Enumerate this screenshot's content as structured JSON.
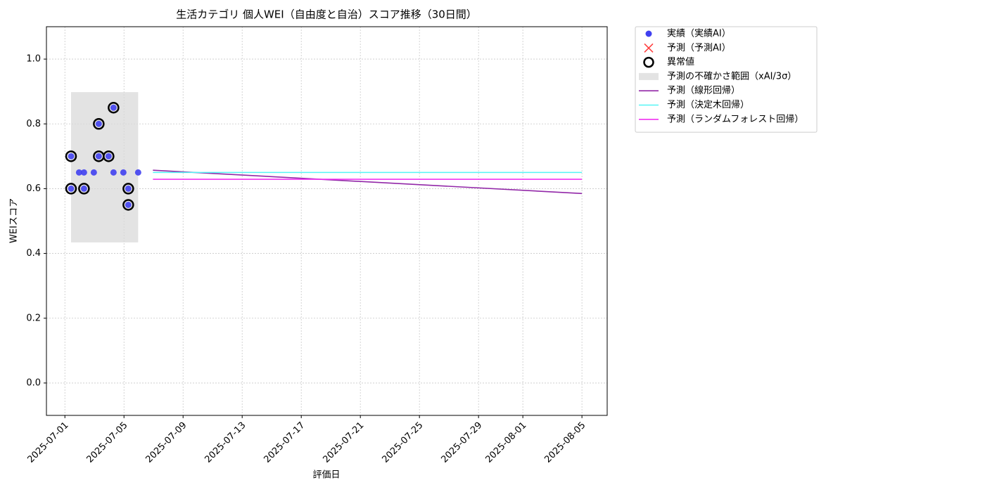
{
  "chart_data": {
    "type": "scatter",
    "title": "生活カテゴリ 個人WEI（自由度と自治）スコア推移（30日間）",
    "x_label": "評価日",
    "y_label": "WEIスコア",
    "xlim": [
      "2025-06-29 18:00",
      "2025-08-06 17:00"
    ],
    "xticks": [
      "2025-07-01",
      "2025-07-05",
      "2025-07-09",
      "2025-07-13",
      "2025-07-17",
      "2025-07-21",
      "2025-07-25",
      "2025-07-29",
      "2025-08-01",
      "2025-08-05"
    ],
    "ylim": [
      -0.1,
      1.1
    ],
    "yticks": [
      {
        "value": 0,
        "label": "0.0"
      },
      0.2,
      0.4,
      0.6,
      0.8,
      {
        "value": 1,
        "label": "1.0"
      }
    ],
    "grid": true,
    "legend": "outside upper right",
    "series": [
      {
        "type": "scatter",
        "name": "実績（実績AI）",
        "color": "#4040f0",
        "x": [
          "2025-07-01 10:00",
          "2025-07-01 10:00",
          "2025-07-01 23:00",
          "2025-07-02 07:00",
          "2025-07-02 07:00",
          "2025-07-02 23:00",
          "2025-07-03 07:00",
          "2025-07-03 07:00",
          "2025-07-03 23:00",
          "2025-07-04 07:00",
          "2025-07-04 07:00",
          "2025-07-04 23:00",
          "2025-07-05 07:00",
          "2025-07-05 07:00",
          "2025-07-05 23:00"
        ],
        "values": [
          0.7,
          0.6,
          0.65,
          0.65,
          0.6,
          0.65,
          0.8,
          0.7,
          0.7,
          0.65,
          0.85,
          0.65,
          0.6,
          0.55,
          0.65
        ]
      },
      {
        "type": "cross",
        "name": "予測（予測AI）",
        "color": "#ff3b3b",
        "x": [],
        "values": []
      },
      {
        "type": "ring",
        "name": "異常値",
        "color": "#000000",
        "x": [
          "2025-07-01 10:00",
          "2025-07-01 10:00",
          "2025-07-02 07:00",
          "2025-07-03 07:00",
          "2025-07-03 07:00",
          "2025-07-03 23:00",
          "2025-07-04 07:00",
          "2025-07-05 07:00",
          "2025-07-05 07:00"
        ],
        "values": [
          0.7,
          0.6,
          0.6,
          0.8,
          0.7,
          0.7,
          0.85,
          0.6,
          0.55
        ]
      },
      {
        "type": "band",
        "name": "予測の不確かさ範囲（xAI/3σ）",
        "color": "#d9d9d9",
        "x": [
          "2025-07-01 10:00",
          "2025-07-05 23:00"
        ],
        "y_range": [
          0.434,
          0.898
        ]
      },
      {
        "type": "line",
        "name": "予測（線形回帰）",
        "color": "#9227a8",
        "x": [
          "2025-07-06 23:00",
          "2025-08-05 00:00"
        ],
        "values": [
          0.657,
          0.585
        ]
      },
      {
        "type": "line",
        "name": "予測（決定木回帰）",
        "color": "#55f5f5",
        "x": [
          "2025-07-06 23:00",
          "2025-08-05 00:00"
        ],
        "values": [
          0.65,
          0.65
        ]
      },
      {
        "type": "line",
        "name": "予測（ランダムフォレスト回帰）",
        "color": "#f032f0",
        "x": [
          "2025-07-06 23:00",
          "2025-08-05 00:00"
        ],
        "values": [
          0.629,
          0.629
        ]
      }
    ]
  }
}
